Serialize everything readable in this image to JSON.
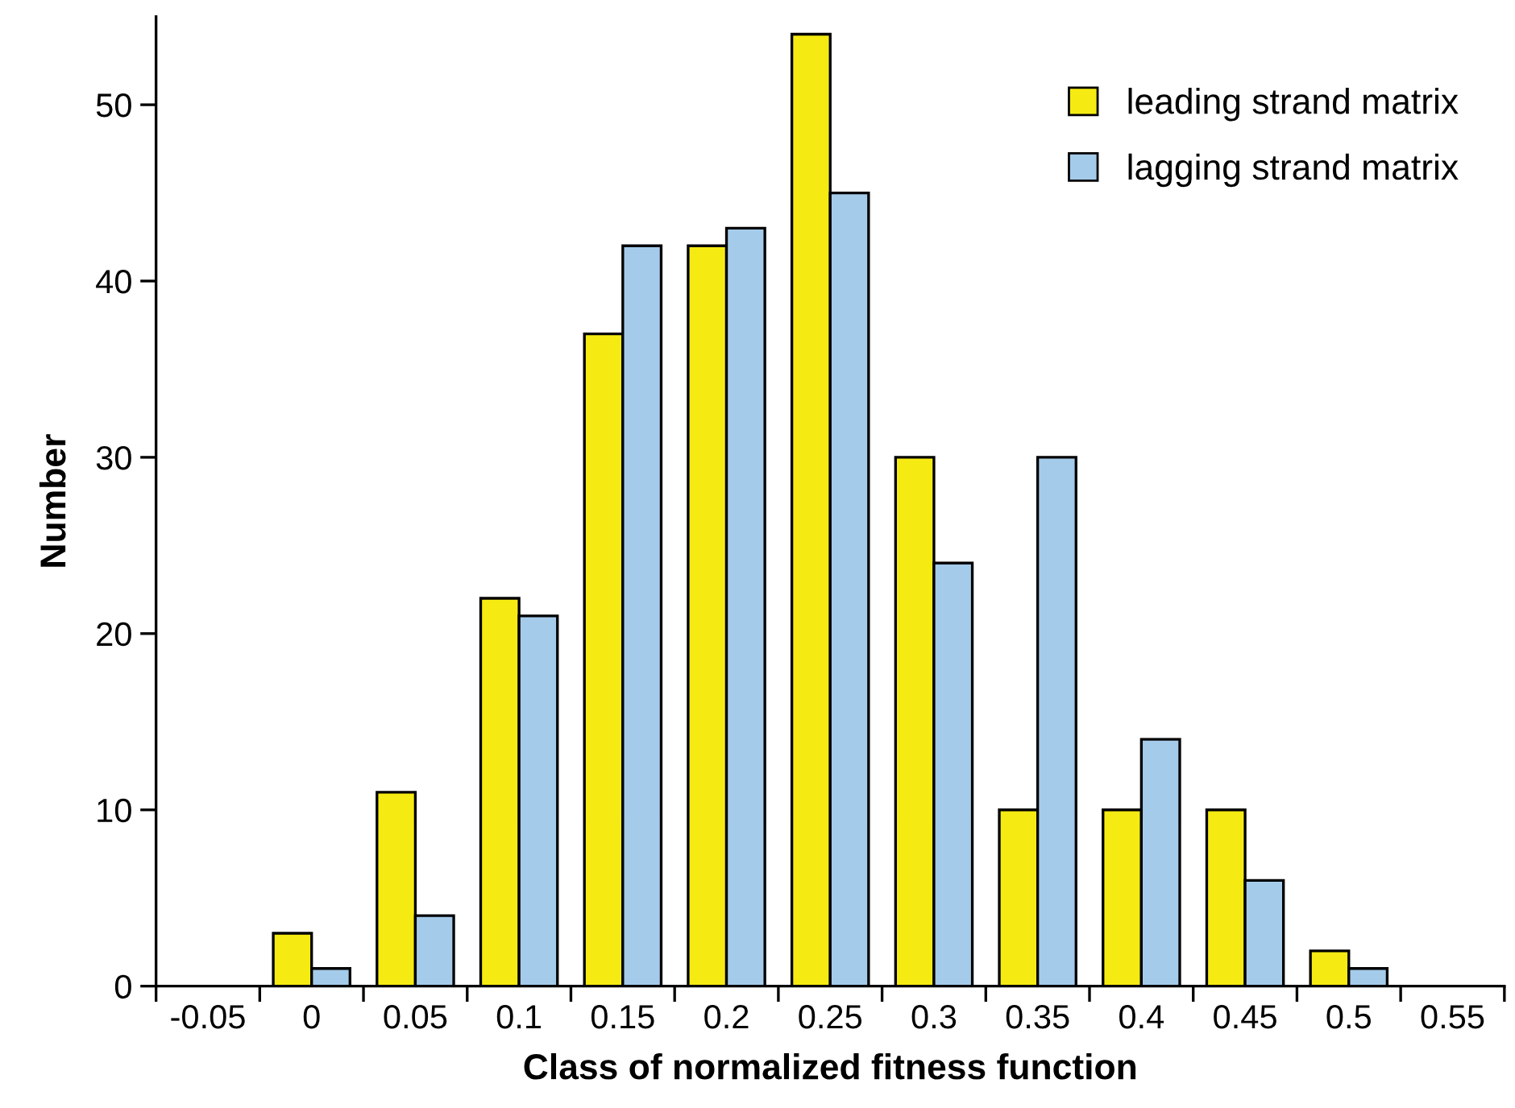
{
  "chart_data": {
    "type": "bar",
    "xlabel": "Class of normalized fitness function",
    "ylabel": "Number",
    "categories": [
      "-0.05",
      "0",
      "0.05",
      "0.1",
      "0.15",
      "0.2",
      "0.25",
      "0.3",
      "0.35",
      "0.4",
      "0.45",
      "0.5",
      "0.55"
    ],
    "series": [
      {
        "name": "leading strand matrix",
        "color": "#f5eb12",
        "values": [
          null,
          3,
          11,
          22,
          37,
          42,
          54,
          30,
          10,
          10,
          10,
          2,
          null
        ]
      },
      {
        "name": "lagging strand matrix",
        "color": "#a5cbea",
        "values": [
          null,
          1,
          4,
          21,
          42,
          43,
          45,
          24,
          30,
          14,
          6,
          1,
          null
        ]
      }
    ],
    "ylim": [
      0,
      55
    ],
    "yticks": [
      0,
      10,
      20,
      30,
      40,
      50
    ],
    "grid": false,
    "legend": "top right"
  }
}
